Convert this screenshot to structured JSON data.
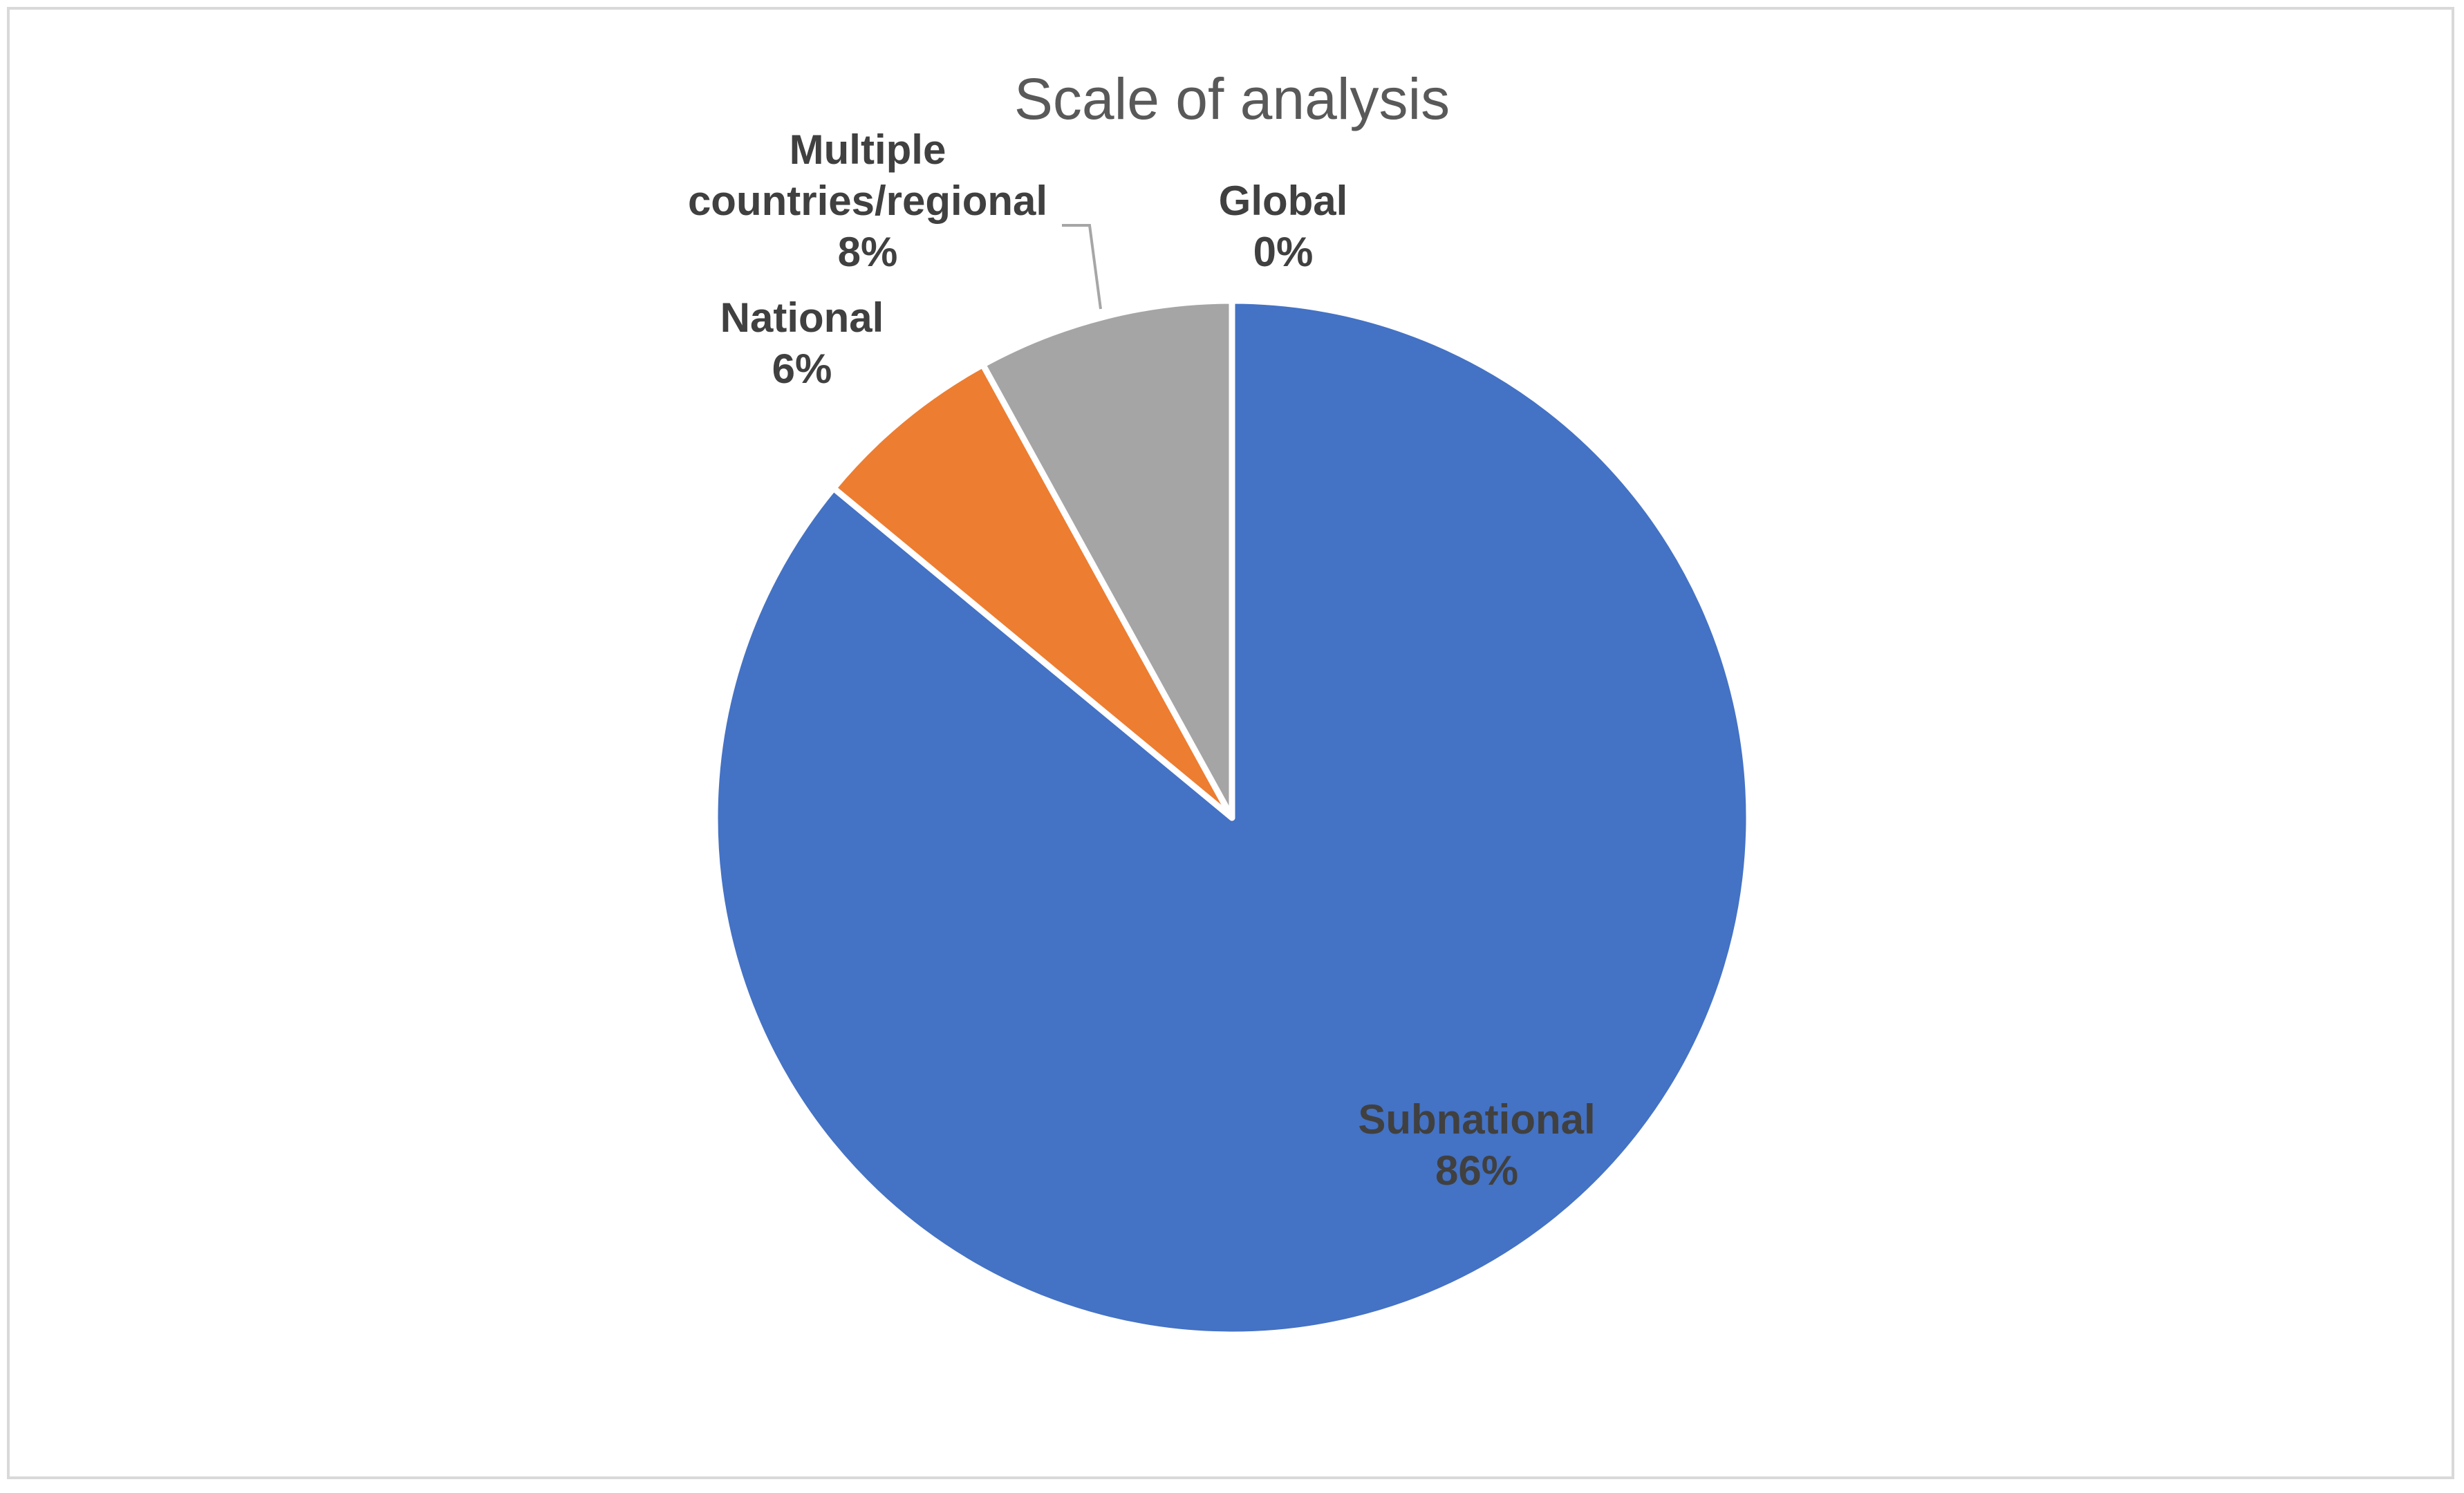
{
  "chart_data": {
    "type": "pie",
    "title": "Scale of analysis",
    "slices": [
      {
        "label_lines": [
          "Subnational"
        ],
        "percent_label": "86%",
        "value": 86,
        "color": "#4472C4"
      },
      {
        "label_lines": [
          "National"
        ],
        "percent_label": "6%",
        "value": 6,
        "color": "#ED7D31"
      },
      {
        "label_lines": [
          "Multiple",
          "countries/regional"
        ],
        "percent_label": "8%",
        "value": 8,
        "color": "#A5A5A5"
      },
      {
        "label_lines": [
          "Global"
        ],
        "percent_label": "0%",
        "value": 0,
        "color": "#FFC000"
      }
    ],
    "start_angle": "12 o'clock",
    "direction": "clockwise",
    "legend": "none",
    "slice_border_color": "#FFFFFF"
  }
}
